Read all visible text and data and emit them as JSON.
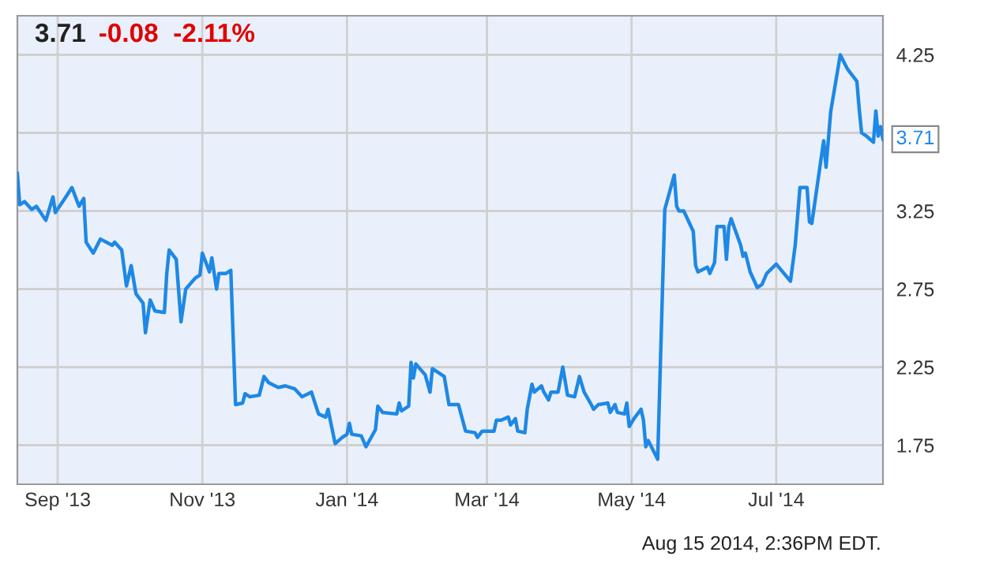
{
  "chart_data": {
    "type": "line",
    "title": "3.71",
    "subtitle": "-0.08  -2.11%",
    "x": [
      "2013-08-15",
      "2013-08-16",
      "2013-08-18",
      "2013-08-21",
      "2013-08-23",
      "2013-08-27",
      "2013-08-30",
      "2013-08-31",
      "2013-09-04",
      "2013-09-07",
      "2013-09-10",
      "2013-09-12",
      "2013-09-13",
      "2013-09-16",
      "2013-09-19",
      "2013-09-24",
      "2013-09-25",
      "2013-09-28",
      "2013-09-30",
      "2013-10-02",
      "2013-10-04",
      "2013-10-07",
      "2013-10-08",
      "2013-10-10",
      "2013-10-12",
      "2013-10-16",
      "2013-10-17",
      "2013-10-18",
      "2013-10-21",
      "2013-10-23",
      "2013-10-25",
      "2013-10-29",
      "2013-10-31",
      "2013-11-01",
      "2013-11-04",
      "2013-11-05",
      "2013-11-07",
      "2013-11-08",
      "2013-11-11",
      "2013-11-13",
      "2013-11-15",
      "2013-11-18",
      "2013-11-19",
      "2013-11-21",
      "2013-11-25",
      "2013-11-27",
      "2013-11-29",
      "2013-12-03",
      "2013-12-06",
      "2013-12-10",
      "2013-12-13",
      "2013-12-17",
      "2013-12-20",
      "2013-12-23",
      "2013-12-24",
      "2013-12-27",
      "2013-12-30",
      "2014-01-01",
      "2014-01-02",
      "2014-01-03",
      "2014-01-07",
      "2014-01-09",
      "2014-01-13",
      "2014-01-14",
      "2014-01-16",
      "2014-01-22",
      "2014-01-23",
      "2014-01-24",
      "2014-01-27",
      "2014-01-28",
      "2014-01-29",
      "2014-01-30",
      "2014-02-03",
      "2014-02-05",
      "2014-02-06",
      "2014-02-10",
      "2014-02-11",
      "2014-02-13",
      "2014-02-17",
      "2014-02-20",
      "2014-02-24",
      "2014-02-25",
      "2014-02-27",
      "2014-03-04",
      "2014-03-05",
      "2014-03-07",
      "2014-03-10",
      "2014-03-11",
      "2014-03-13",
      "2014-03-14",
      "2014-03-17",
      "2014-03-18",
      "2014-03-20",
      "2014-03-21",
      "2014-03-24",
      "2014-03-25",
      "2014-03-27",
      "2014-03-28",
      "2014-03-31",
      "2014-04-02",
      "2014-04-04",
      "2014-04-07",
      "2014-04-09",
      "2014-04-11",
      "2014-04-14",
      "2014-04-15",
      "2014-04-17",
      "2014-04-21",
      "2014-04-22",
      "2014-04-24",
      "2014-04-25",
      "2014-04-28",
      "2014-04-29",
      "2014-04-30",
      "2014-05-02",
      "2014-05-05",
      "2014-05-06",
      "2014-05-07",
      "2014-05-08",
      "2014-05-12",
      "2014-05-15",
      "2014-05-19",
      "2014-05-20",
      "2014-05-21",
      "2014-05-23",
      "2014-05-27",
      "2014-05-28",
      "2014-05-29",
      "2014-06-02",
      "2014-06-03",
      "2014-06-05",
      "2014-06-06",
      "2014-06-09",
      "2014-06-10",
      "2014-06-11",
      "2014-06-12",
      "2014-06-16",
      "2014-06-17",
      "2014-06-18",
      "2014-06-20",
      "2014-06-23",
      "2014-06-25",
      "2014-06-27",
      "2014-07-01",
      "2014-07-07",
      "2014-07-09",
      "2014-07-11",
      "2014-07-14",
      "2014-07-15",
      "2014-07-16",
      "2014-07-21",
      "2014-07-22",
      "2014-07-24",
      "2014-07-28",
      "2014-07-30",
      "2014-07-31",
      "2014-08-04",
      "2014-08-05",
      "2014-08-06",
      "2014-08-08",
      "2014-08-11",
      "2014-08-12",
      "2014-08-13",
      "2014-08-14",
      "2014-08-15"
    ],
    "series": [
      {
        "color": "#1e88e5",
        "values": [
          3.49,
          3.29,
          3.31,
          3.26,
          3.28,
          3.19,
          3.34,
          3.24,
          3.33,
          3.4,
          3.28,
          3.33,
          3.05,
          2.98,
          3.07,
          3.03,
          3.05,
          3.0,
          2.77,
          2.9,
          2.72,
          2.66,
          2.47,
          2.68,
          2.61,
          2.6,
          2.85,
          3.0,
          2.94,
          2.54,
          2.75,
          2.82,
          2.84,
          2.98,
          2.86,
          2.95,
          2.75,
          2.85,
          2.85,
          2.87,
          2.01,
          2.02,
          2.08,
          2.06,
          2.07,
          2.19,
          2.15,
          2.12,
          2.13,
          2.11,
          2.06,
          2.09,
          1.95,
          1.93,
          1.98,
          1.76,
          1.8,
          1.82,
          1.89,
          1.82,
          1.81,
          1.74,
          1.85,
          2.0,
          1.96,
          1.95,
          2.02,
          1.97,
          2.0,
          2.28,
          2.18,
          2.27,
          2.2,
          2.09,
          2.24,
          2.2,
          2.19,
          2.01,
          2.01,
          1.84,
          1.83,
          1.8,
          1.84,
          1.84,
          1.91,
          1.91,
          1.93,
          1.88,
          1.92,
          1.84,
          1.83,
          1.98,
          2.14,
          2.09,
          2.13,
          2.09,
          2.04,
          2.09,
          2.09,
          2.25,
          2.07,
          2.06,
          2.19,
          2.09,
          2.01,
          1.98,
          2.01,
          2.02,
          1.96,
          2.01,
          1.96,
          1.95,
          2.02,
          1.87,
          1.92,
          1.98,
          1.91,
          1.74,
          1.78,
          1.66,
          3.26,
          3.48,
          3.28,
          3.25,
          3.25,
          3.12,
          2.9,
          2.86,
          2.89,
          2.85,
          2.92,
          3.15,
          3.15,
          2.94,
          3.15,
          3.2,
          3.03,
          2.96,
          2.98,
          2.86,
          2.76,
          2.78,
          2.85,
          2.91,
          2.8,
          3.03,
          3.4,
          3.4,
          3.18,
          3.17,
          3.7,
          3.53,
          3.89,
          4.25,
          4.19,
          4.16,
          4.08,
          3.9,
          3.75,
          3.73,
          3.69,
          3.89,
          3.73,
          3.79,
          3.71
        ]
      }
    ],
    "xlim": [
      "2013-08-15",
      "2014-08-15"
    ],
    "xticks": [
      {
        "value": "2013-09-01",
        "label": "Sep '13"
      },
      {
        "value": "2013-11-01",
        "label": "Nov '13"
      },
      {
        "value": "2014-01-01",
        "label": "Jan '14"
      },
      {
        "value": "2014-03-01",
        "label": "Mar '14"
      },
      {
        "value": "2014-05-01",
        "label": "May '14"
      },
      {
        "value": "2014-07-01",
        "label": "Jul '14"
      }
    ],
    "ylim": [
      1.5,
      4.5
    ],
    "yticks": [
      1.75,
      2.25,
      2.75,
      3.25,
      {
        "value": 3.75,
        "label": null
      },
      4.25
    ],
    "grid": true,
    "marker": "none",
    "line_style": "solid",
    "annotations": [
      {
        "text": "3.71",
        "x": "2014-08-15",
        "y": 3.71
      },
      "Aug 15 2014, 2:36PM EDT."
    ]
  }
}
